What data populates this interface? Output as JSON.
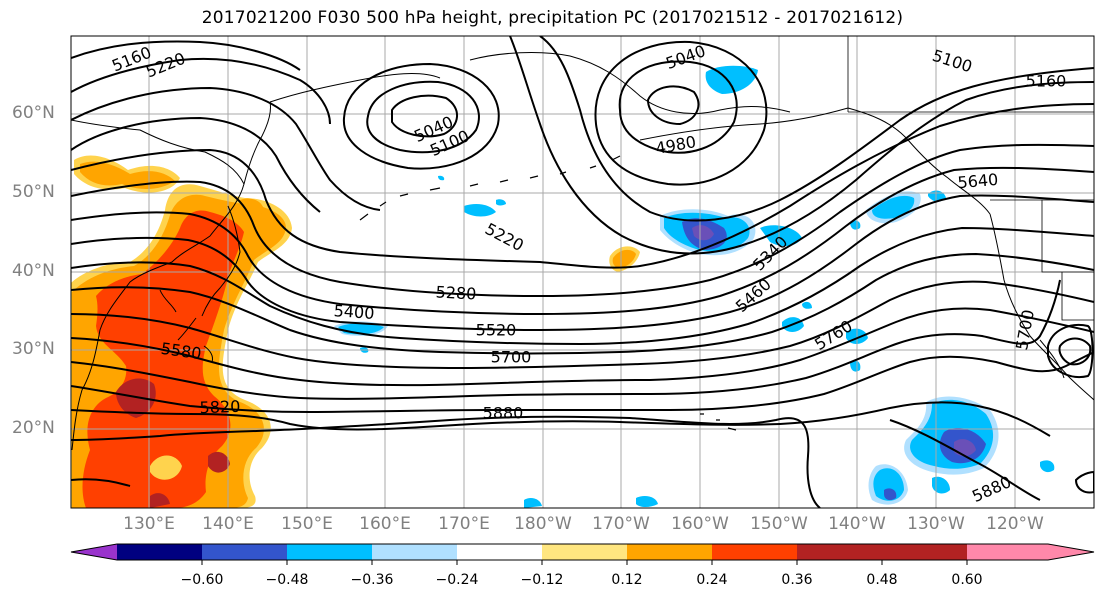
{
  "title": "2017021200 F030 500 hPa height, precipitation PC (2017021512 - 2017021612)",
  "lat_labels": [
    "60°N",
    "50°N",
    "40°N",
    "30°N",
    "20°N"
  ],
  "lon_labels": [
    "130°E",
    "140°E",
    "150°E",
    "160°E",
    "170°E",
    "180°W",
    "170°W",
    "160°W",
    "150°W",
    "140°W",
    "130°W",
    "120°W"
  ],
  "contour_labels": [
    "5160",
    "5220",
    "5040",
    "5100",
    "5040",
    "5100",
    "5160",
    "4980",
    "5220",
    "5280",
    "5400",
    "5520",
    "5580",
    "5700",
    "5820",
    "5880",
    "5340",
    "5460",
    "5640",
    "5760",
    "5700",
    "5880"
  ],
  "colorbar": {
    "tick_labels": [
      "−0.60",
      "−0.48",
      "−0.36",
      "−0.24",
      "−0.12",
      "0.12",
      "0.24",
      "0.36",
      "0.48",
      "0.60"
    ],
    "colors": [
      "#9933cc",
      "#000080",
      "#3355cc",
      "#00bfff",
      "#b0e0ff",
      "#ffffff",
      "#ffe680",
      "#ffa500",
      "#ff4000",
      "#b22222",
      "#ff88aa"
    ]
  },
  "shading_colors": {
    "light_orange": "#ffd34d",
    "orange": "#ffa500",
    "red_orange": "#ff4000",
    "dark_red": "#b22222",
    "light_blue": "#b0e0ff",
    "sky_blue": "#00bfff",
    "blue": "#3355cc",
    "violet": "#6a50b8"
  }
}
